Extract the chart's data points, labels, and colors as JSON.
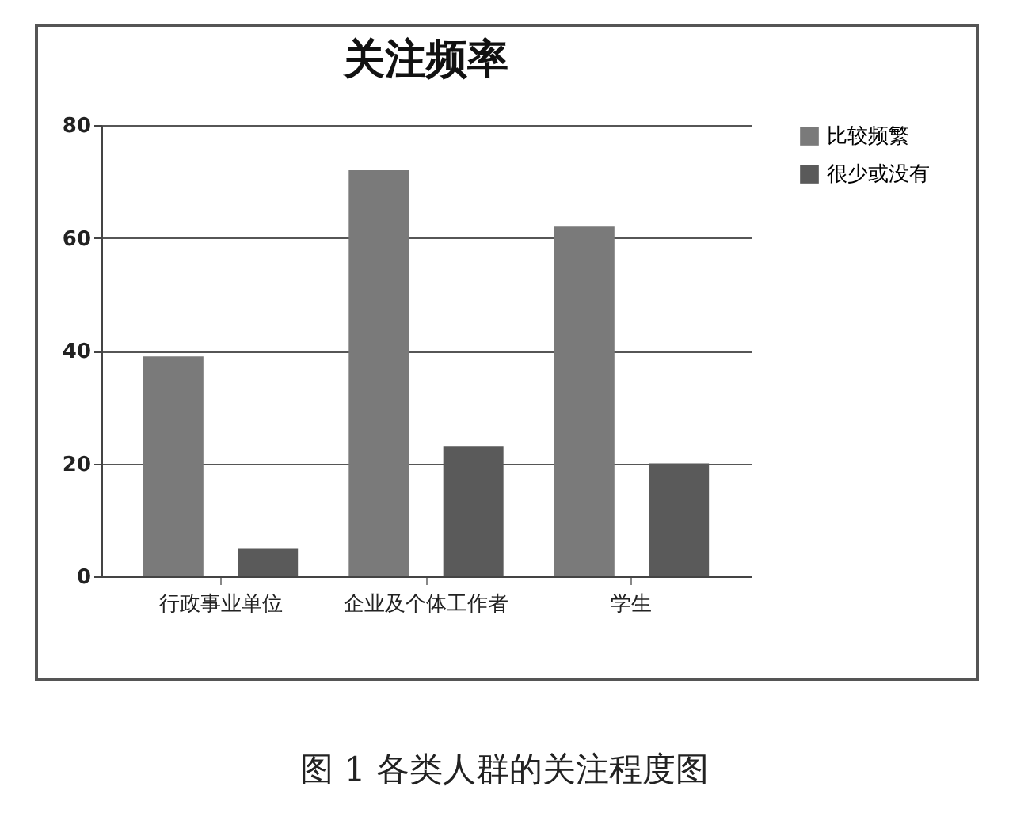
{
  "chart_data": {
    "type": "bar",
    "title": "关注频率",
    "categories": [
      "行政事业单位",
      "企业及个体工作者",
      "学生"
    ],
    "series": [
      {
        "name": "比较频繁",
        "color": "#7a7a7a",
        "values": [
          39,
          72,
          62
        ]
      },
      {
        "name": "很少或没有",
        "color": "#5a5a5a",
        "values": [
          5,
          23,
          20
        ]
      }
    ],
    "ylim": [
      0,
      80
    ],
    "yticks": [
      0,
      20,
      40,
      60,
      80
    ],
    "grid": "y",
    "legend": "right",
    "annotations": [
      "图 1  各类人群的关注程度图"
    ]
  }
}
